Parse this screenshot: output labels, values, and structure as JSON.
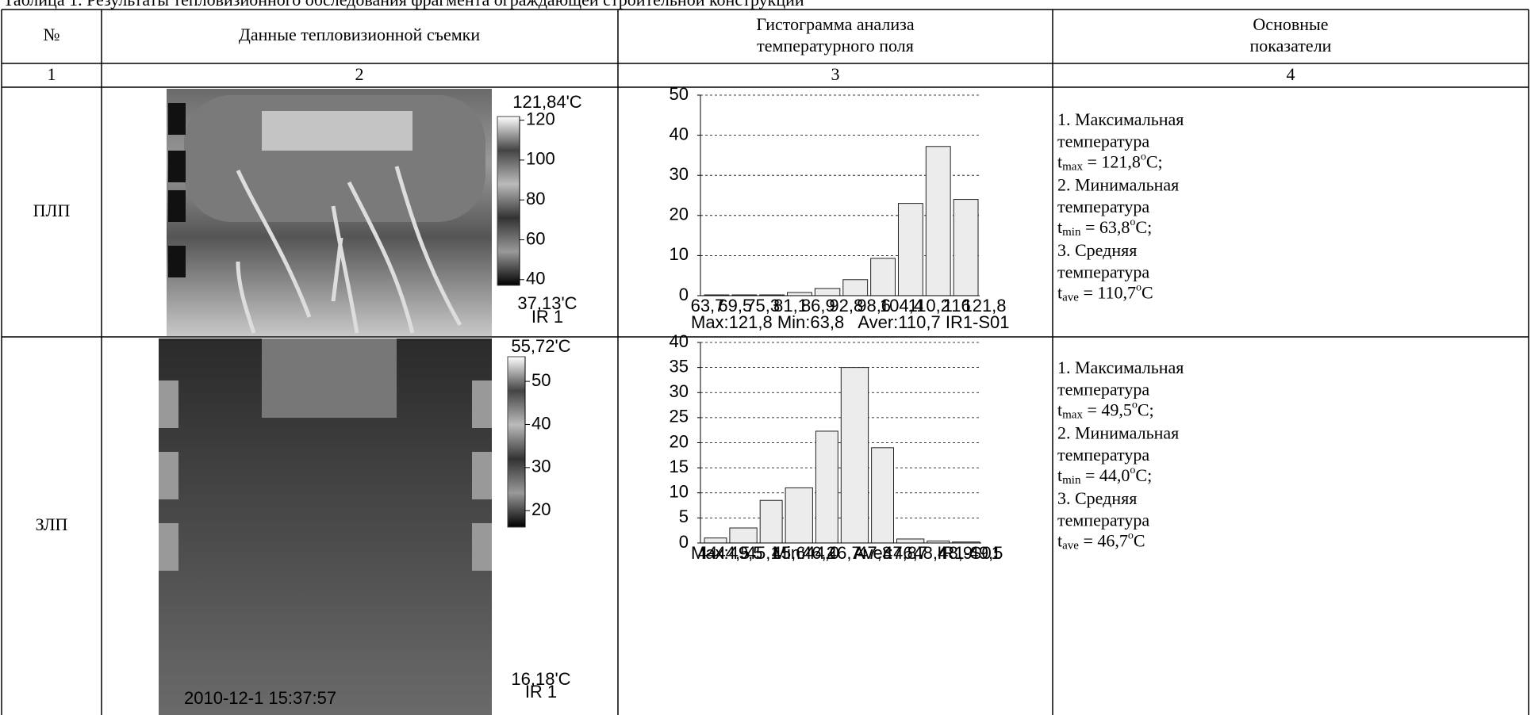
{
  "caption": "Таблица 1. Результаты тепловизионного обследования фрагмента ограждающей строительной конструкции",
  "table": {
    "header": [
      "№",
      "Данные тепловизионной съемки",
      [
        "Гистограмма анализа",
        "температурного поля"
      ],
      [
        "Основные",
        "показатели"
      ]
    ],
    "numbers": [
      1,
      2,
      3,
      4
    ],
    "rows": [
      {
        "name": "ПЛП",
        "thermal": {
          "max": {
            "value": 121.84,
            "label": "121,84'C"
          },
          "min": {
            "value": 37.13,
            "label": "37,13'C"
          },
          "ticks": [
            120,
            100,
            80,
            60,
            40
          ],
          "sensor": "IR 1"
        },
        "histogram": {
          "ylim": [
            0,
            50
          ],
          "yticks": [
            0,
            10,
            20,
            30,
            40,
            50
          ],
          "bins": [
            {
              "value": 63.7,
              "label": "63,7"
            },
            {
              "value": 69.5,
              "label": "69,5"
            },
            {
              "value": 75.3,
              "label": "75,3"
            },
            {
              "value": 81.1,
              "label": "81,1"
            },
            {
              "value": 86.9,
              "label": "86,9"
            },
            {
              "value": 92.8,
              "label": "92,8"
            },
            {
              "value": 98.6,
              "label": "98,6"
            },
            {
              "value": 104.4,
              "label": "104,4"
            },
            {
              "value": 110.2,
              "label": "110,2"
            },
            116,
            {
              "value": 121.8,
              "label": "121,8"
            }
          ],
          "counts": [
            0.2,
            0.2,
            0.2,
            0.8,
            1.8,
            4,
            9.3,
            23,
            37.2,
            24
          ],
          "footer": "Max:121,8 Min:63,8   Aver:110,7 IR1-S01"
        },
        "indicators": [
          {
            "title": "1. Максимальная",
            "word": "температура",
            "symbol": "t",
            "sub": "max",
            "eq": " = 121,8",
            "sup": "o",
            "unit": "C;"
          },
          {
            "title": "2. Минимальная",
            "word": "температура",
            "symbol": "t",
            "sub": "min",
            "eq": " = 63,8",
            "sup": "o",
            "unit": "C;"
          },
          {
            "title": "3. Средняя",
            "word": "температура",
            "symbol": "t",
            "sub": "ave",
            "eq": " = 110,7",
            "sup": "o",
            "unit": "C"
          }
        ]
      },
      {
        "name": "ЗЛП",
        "thermal": {
          "max": {
            "value": 55.72,
            "label": "55,72'C"
          },
          "min": {
            "value": 16.18,
            "label": "16,18'C"
          },
          "ticks": [
            50,
            40,
            30,
            20
          ],
          "sensor": "IR 1",
          "timestamp": "2010-12-1 15:37:57"
        },
        "histogram": {
          "ylim": [
            0,
            40
          ],
          "yticks": [
            0,
            5,
            10,
            15,
            20,
            25,
            30,
            35,
            40
          ],
          "bins": [
            44,
            {
              "value": 44.5,
              "label": "44,5"
            },
            {
              "value": 45.1,
              "label": "45,1"
            },
            {
              "value": 45.6,
              "label": "45,6"
            },
            {
              "value": 46.2,
              "label": "46,2"
            },
            {
              "value": 46.7,
              "label": "46,7"
            },
            {
              "value": 47.3,
              "label": "47,3"
            },
            {
              "value": 47.8,
              "label": "47,8"
            },
            {
              "value": 48.4,
              "label": "48,4"
            },
            {
              "value": 48.9,
              "label": "48,9"
            },
            {
              "value": 49.5,
              "label": "49,5"
            }
          ],
          "counts": [
            1,
            3,
            8.5,
            11,
            22.3,
            35,
            19,
            0.8,
            0.4,
            0.2
          ],
          "footer": "Max:49,5  Min:44,0   Aver:46,7  IR1-S01"
        },
        "indicators": [
          {
            "title": "1. Максимальная",
            "word": "температура",
            "symbol": "t",
            "sub": "max",
            "eq": " = 49,5",
            "sup": "o",
            "unit": "C;"
          },
          {
            "title": "2. Минимальная",
            "word": "температура",
            "symbol": "t",
            "sub": "min",
            "eq": " = 44,0",
            "sup": "o",
            "unit": "C;"
          },
          {
            "title": "3. Средняя",
            "word": "температура",
            "symbol": "t",
            "sub": "ave",
            "eq": " = 46,7",
            "sup": "o",
            "unit": "C"
          }
        ]
      }
    ]
  }
}
